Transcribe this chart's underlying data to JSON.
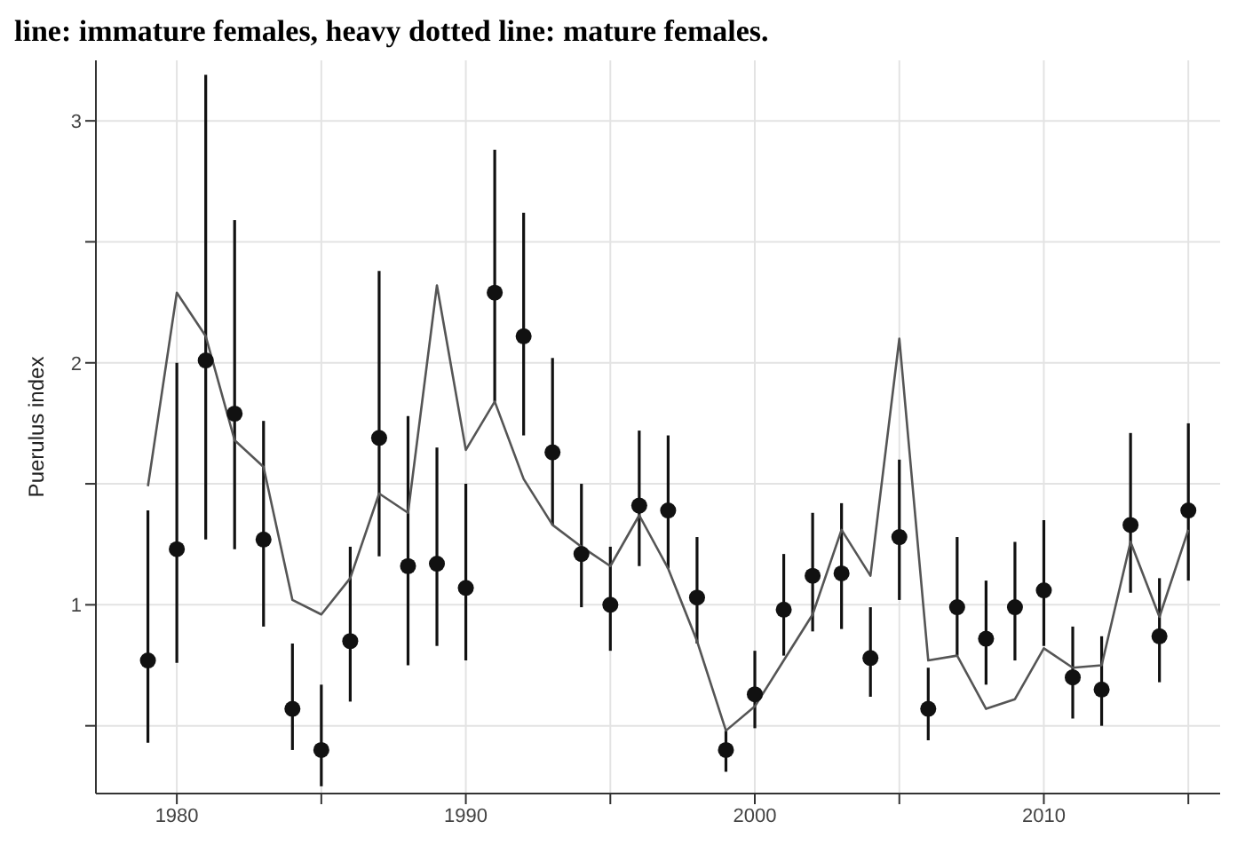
{
  "chart_data": {
    "type": "scatter",
    "title": "line: immature females, heavy dotted line: mature females.",
    "ylabel": "Puerulus index",
    "x": [
      1979,
      1980,
      1981,
      1982,
      1983,
      1984,
      1985,
      1986,
      1987,
      1988,
      1989,
      1990,
      1991,
      1992,
      1993,
      1994,
      1995,
      1996,
      1997,
      1998,
      1999,
      2000,
      2001,
      2002,
      2003,
      2004,
      2005,
      2006,
      2007,
      2008,
      2009,
      2010,
      2011,
      2012,
      2013,
      2014,
      2015
    ],
    "series": [
      {
        "color": "#111111",
        "marker": "circle",
        "values": [
          0.77,
          1.23,
          2.01,
          1.79,
          1.27,
          0.57,
          0.4,
          0.85,
          1.69,
          1.16,
          1.17,
          1.07,
          2.29,
          2.11,
          1.63,
          1.21,
          1.0,
          1.41,
          1.39,
          1.03,
          0.4,
          0.63,
          0.98,
          1.12,
          1.13,
          0.78,
          1.28,
          0.57,
          0.99,
          0.86,
          0.99,
          1.06,
          0.7,
          0.65,
          1.33,
          0.87,
          1.39
        ],
        "errors": [
          [
            0.43,
            1.39
          ],
          [
            0.76,
            2.0
          ],
          [
            1.27,
            3.19
          ],
          [
            1.23,
            2.59
          ],
          [
            0.91,
            1.76
          ],
          [
            0.4,
            0.84
          ],
          [
            0.25,
            0.67
          ],
          [
            0.6,
            1.24
          ],
          [
            1.2,
            2.38
          ],
          [
            0.75,
            1.78
          ],
          [
            0.83,
            1.65
          ],
          [
            0.77,
            1.5
          ],
          [
            1.84,
            2.88
          ],
          [
            1.7,
            2.62
          ],
          [
            1.33,
            2.02
          ],
          [
            0.99,
            1.5
          ],
          [
            0.81,
            1.24
          ],
          [
            1.16,
            1.72
          ],
          [
            1.15,
            1.7
          ],
          [
            0.84,
            1.28
          ],
          [
            0.31,
            0.48
          ],
          [
            0.49,
            0.81
          ],
          [
            0.79,
            1.21
          ],
          [
            0.89,
            1.38
          ],
          [
            0.9,
            1.42
          ],
          [
            0.62,
            0.99
          ],
          [
            1.02,
            1.6
          ],
          [
            0.44,
            0.74
          ],
          [
            0.79,
            1.28
          ],
          [
            0.67,
            1.1
          ],
          [
            0.77,
            1.26
          ],
          [
            0.83,
            1.35
          ],
          [
            0.53,
            0.91
          ],
          [
            0.5,
            0.87
          ],
          [
            1.05,
            1.71
          ],
          [
            0.68,
            1.11
          ],
          [
            1.1,
            1.75
          ]
        ]
      },
      {
        "type": "line",
        "color": "#555555",
        "marker": "none",
        "line_style": "solid",
        "values": [
          1.49,
          2.29,
          2.11,
          1.68,
          1.57,
          1.02,
          0.96,
          1.11,
          1.46,
          1.38,
          2.32,
          1.64,
          1.84,
          1.52,
          1.33,
          1.24,
          1.16,
          1.37,
          1.15,
          0.85,
          0.48,
          0.58,
          0.77,
          0.96,
          1.31,
          1.12,
          2.1,
          0.77,
          0.79,
          0.57,
          0.61,
          0.82,
          0.74,
          0.75,
          1.26,
          0.95,
          1.31
        ]
      }
    ],
    "xlim": [
      1977.2,
      2016.1
    ],
    "xticks": [
      1980,
      {
        "value": 1985,
        "label": null
      },
      1990,
      {
        "value": 1995,
        "label": null
      },
      2000,
      {
        "value": 2005,
        "label": null
      },
      2010,
      {
        "value": 2015,
        "label": null
      }
    ],
    "ylim": [
      0.22,
      3.25
    ],
    "yticks": [
      {
        "value": 0.5,
        "label": null
      },
      1,
      {
        "value": 1.5,
        "label": null
      },
      2,
      {
        "value": 2.5,
        "label": null
      },
      3
    ],
    "grid": true
  }
}
